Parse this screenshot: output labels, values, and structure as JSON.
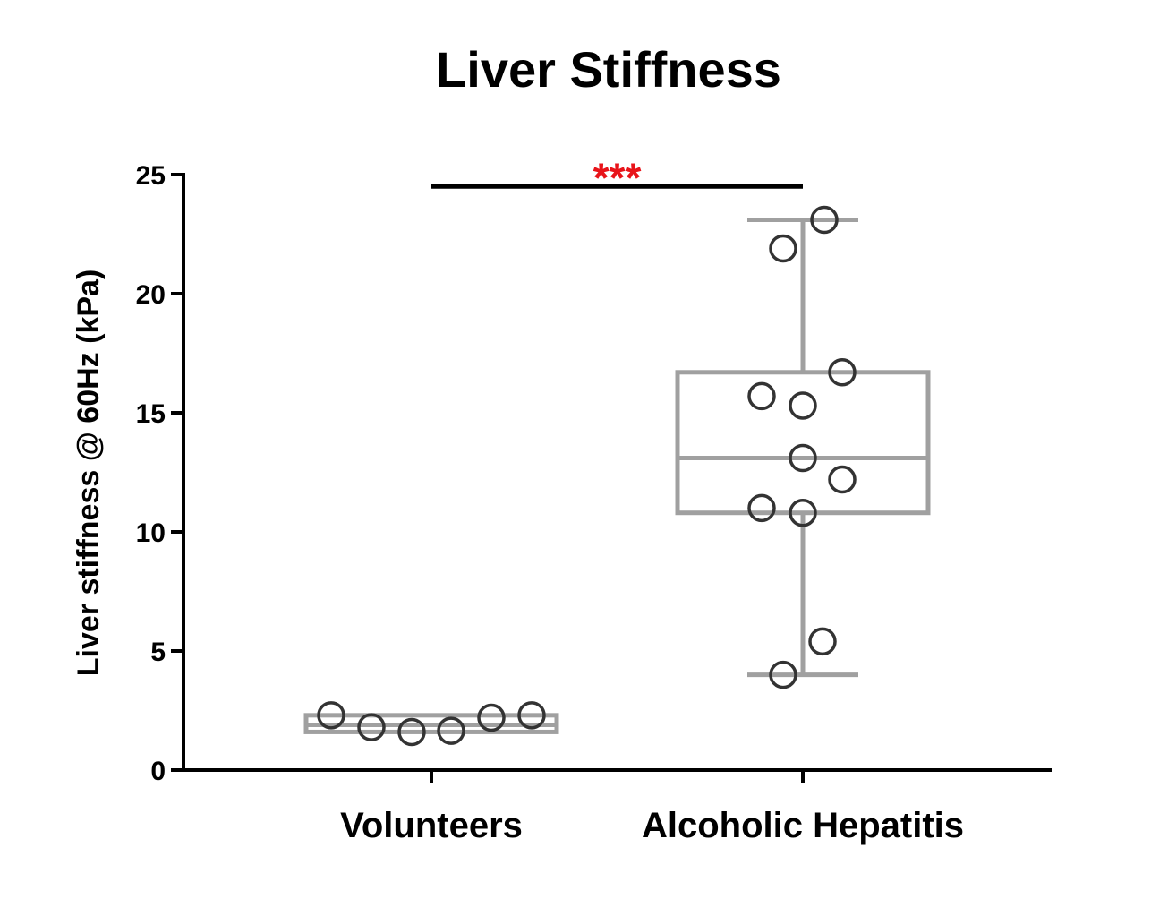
{
  "chart_data": {
    "type": "box",
    "title": "Liver Stiffness",
    "xlabel": "",
    "ylabel": "Liver stiffness @ 60Hz (kPa)",
    "ylim": [
      0,
      25
    ],
    "yticks": [
      0,
      5,
      10,
      15,
      20,
      25
    ],
    "ytick_labels": [
      "0",
      "5",
      "10",
      "15",
      "20",
      "25"
    ],
    "categories": [
      "Volunteers",
      "Alcoholic Hepatitis"
    ],
    "groups": [
      {
        "category": "Volunteers",
        "whisker_low": 1.6,
        "q1": 1.6,
        "median": 1.9,
        "q3": 2.3,
        "whisker_high": 2.3,
        "points": [
          2.3,
          1.8,
          1.6,
          1.65,
          2.2,
          2.3
        ]
      },
      {
        "category": "Alcoholic Hepatitis",
        "whisker_low": 4.0,
        "q1": 10.8,
        "median": 13.1,
        "q3": 16.7,
        "whisker_high": 23.1,
        "points": [
          23.1,
          21.9,
          16.7,
          15.7,
          15.3,
          13.1,
          12.2,
          11.0,
          10.8,
          5.4,
          4.0
        ]
      }
    ],
    "significance": {
      "label": "***",
      "between": [
        "Volunteers",
        "Alcoholic Hepatitis"
      ],
      "y": 24.5,
      "color": "#e8141a"
    },
    "colors": {
      "box": "#a0a0a0",
      "points": "#333333",
      "axis": "#000000"
    }
  }
}
